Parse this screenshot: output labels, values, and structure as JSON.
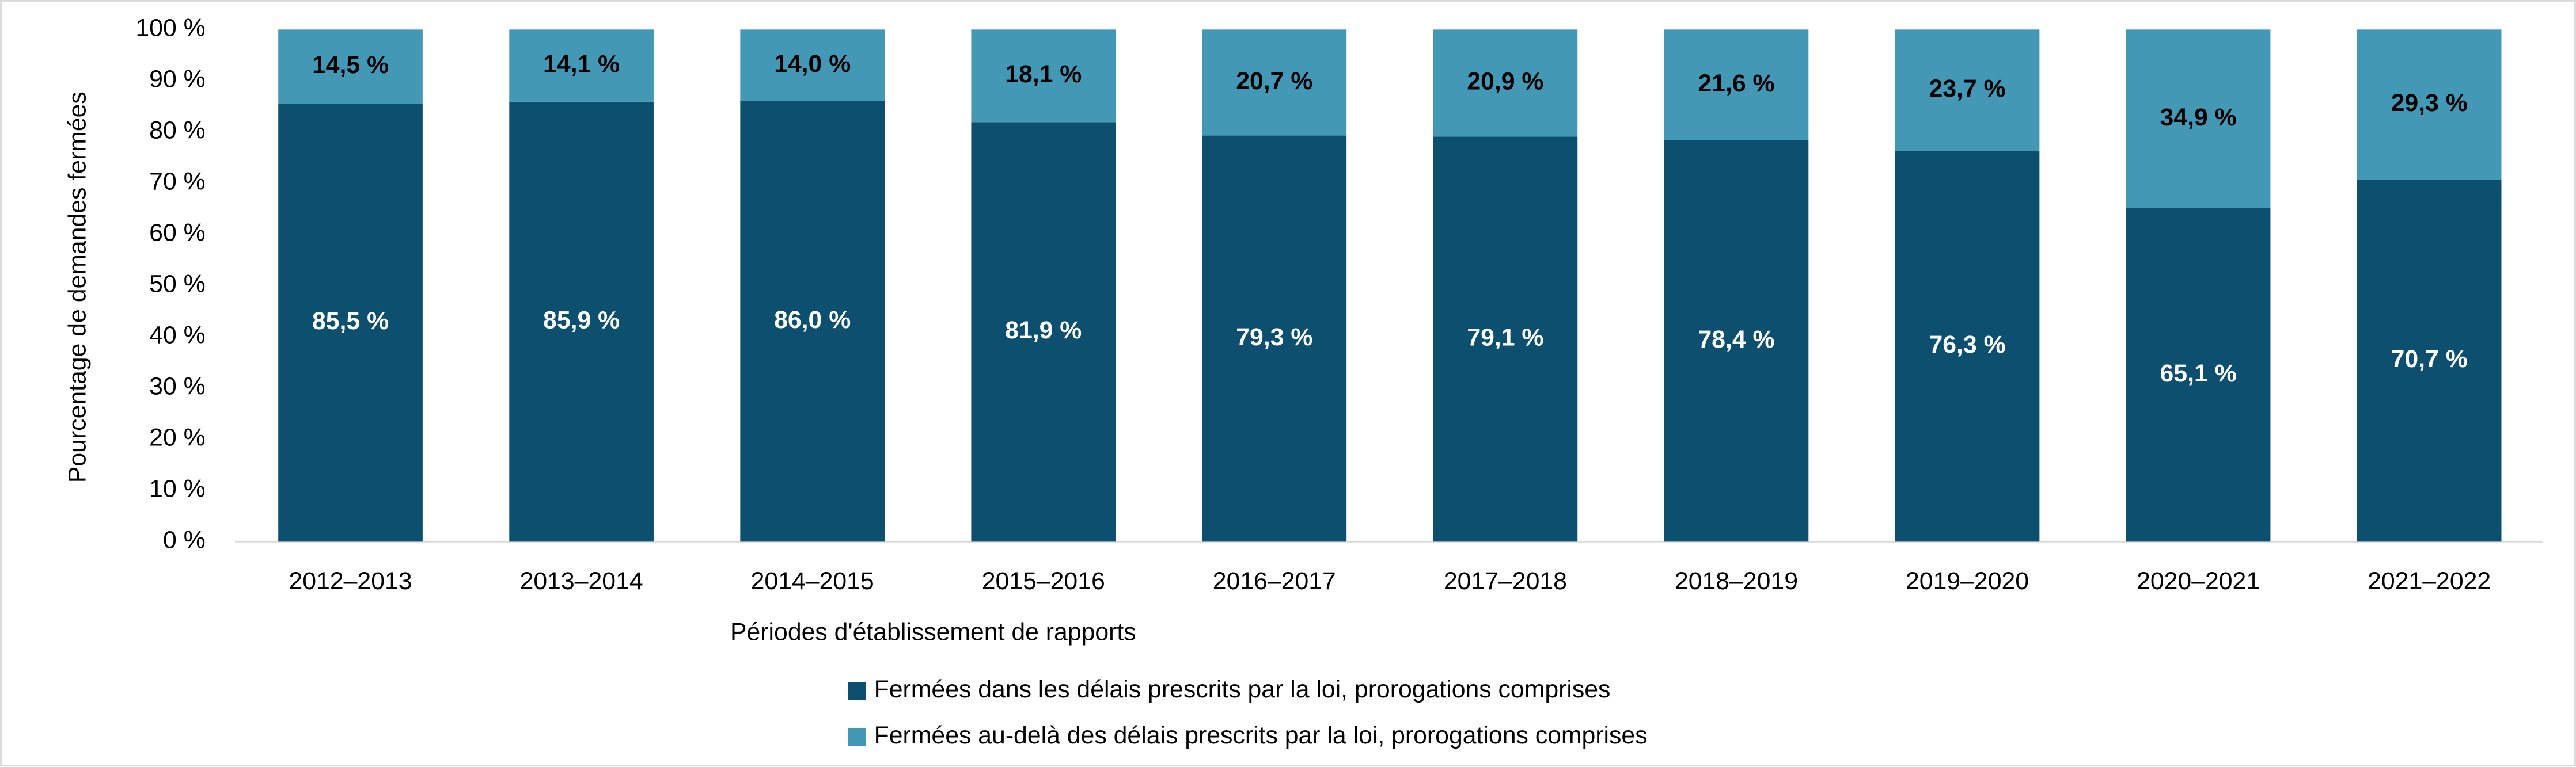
{
  "chart_data": {
    "type": "stacked-bar",
    "y_label": "Pourcentage de demandes fermées",
    "x_label": "Périodes d'établissement de rapports",
    "categories": [
      "2012–2013",
      "2013–2014",
      "2014–2015",
      "2015–2016",
      "2016–2017",
      "2017–2018",
      "2018–2019",
      "2019–2020",
      "2020–2021",
      "2021–2022"
    ],
    "series": [
      {
        "name": "Fermées dans les délais prescrits par la loi, prorogations comprises",
        "color": "#0d4f6e",
        "values": [
          85.5,
          85.9,
          86.0,
          81.9,
          79.3,
          79.1,
          78.4,
          76.3,
          65.1,
          70.7
        ],
        "value_labels": [
          "85,5 %",
          "85,9 %",
          "86,0 %",
          "81,9 %",
          "79,3 %",
          "79,1 %",
          "78,4 %",
          "76,3 %",
          "65,1 %",
          "70,7 %"
        ]
      },
      {
        "name": "Fermées au-delà des délais prescrits par la loi, prorogations comprises",
        "color": "#4398b6",
        "values": [
          14.5,
          14.1,
          14.0,
          18.1,
          20.7,
          20.9,
          21.6,
          23.7,
          34.9,
          29.3
        ],
        "value_labels": [
          "14,5 %",
          "14,1 %",
          "14,0 %",
          "18,1 %",
          "20,7 %",
          "20,9 %",
          "21,6 %",
          "23,7 %",
          "34,9 %",
          "29,3 %"
        ]
      }
    ],
    "ylim": [
      0,
      100
    ],
    "yticks": [
      {
        "value": 0,
        "label": "0 %"
      },
      {
        "value": 10,
        "label": "10 %"
      },
      {
        "value": 20,
        "label": "20 %"
      },
      {
        "value": 30,
        "label": "30 %"
      },
      {
        "value": 40,
        "label": "40 %"
      },
      {
        "value": 50,
        "label": "50 %"
      },
      {
        "value": 60,
        "label": "60 %"
      },
      {
        "value": 70,
        "label": "70 %"
      },
      {
        "value": 80,
        "label": "80 %"
      },
      {
        "value": 90,
        "label": "90 %"
      },
      {
        "value": 100,
        "label": "100 %"
      }
    ],
    "grid": false,
    "legend": "bottom"
  }
}
